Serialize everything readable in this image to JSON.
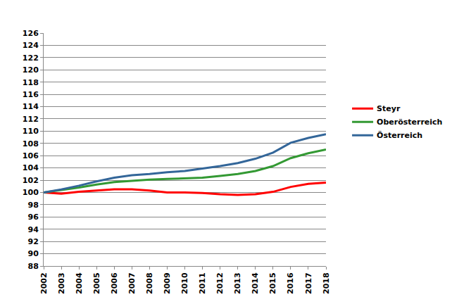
{
  "chart_data": {
    "type": "line",
    "x": [
      2002,
      2003,
      2004,
      2005,
      2006,
      2007,
      2008,
      2009,
      2010,
      2011,
      2012,
      2013,
      2014,
      2015,
      2016,
      2017,
      2018
    ],
    "series": [
      {
        "name": "Steyr",
        "color": "#ff0000",
        "values": [
          100,
          99.8,
          100.1,
          100.3,
          100.5,
          100.5,
          100.3,
          100.0,
          100.0,
          99.9,
          99.7,
          99.6,
          99.7,
          100.1,
          100.9,
          101.4,
          101.6
        ]
      },
      {
        "name": "Oberösterreich",
        "color": "#339933",
        "values": [
          100,
          100.4,
          100.8,
          101.3,
          101.7,
          101.9,
          102.1,
          102.2,
          102.3,
          102.4,
          102.7,
          103.0,
          103.5,
          104.3,
          105.6,
          106.4,
          107.0
        ]
      },
      {
        "name": "Österreich",
        "color": "#336699",
        "values": [
          100,
          100.5,
          101.1,
          101.8,
          102.4,
          102.8,
          103.0,
          103.3,
          103.5,
          103.9,
          104.3,
          104.8,
          105.5,
          106.5,
          108.1,
          108.9,
          109.5
        ]
      }
    ],
    "xlim": [
      2002,
      2018
    ],
    "xticks": [
      2002,
      2003,
      2004,
      2005,
      2006,
      2007,
      2008,
      2009,
      2010,
      2011,
      2012,
      2013,
      2014,
      2015,
      2016,
      2017,
      2018
    ],
    "ylim": [
      88,
      126
    ],
    "yticks": [
      88,
      90,
      92,
      94,
      96,
      98,
      100,
      102,
      104,
      106,
      108,
      110,
      112,
      114,
      116,
      118,
      120,
      122,
      124,
      126
    ],
    "grid": true,
    "legend": "right"
  }
}
